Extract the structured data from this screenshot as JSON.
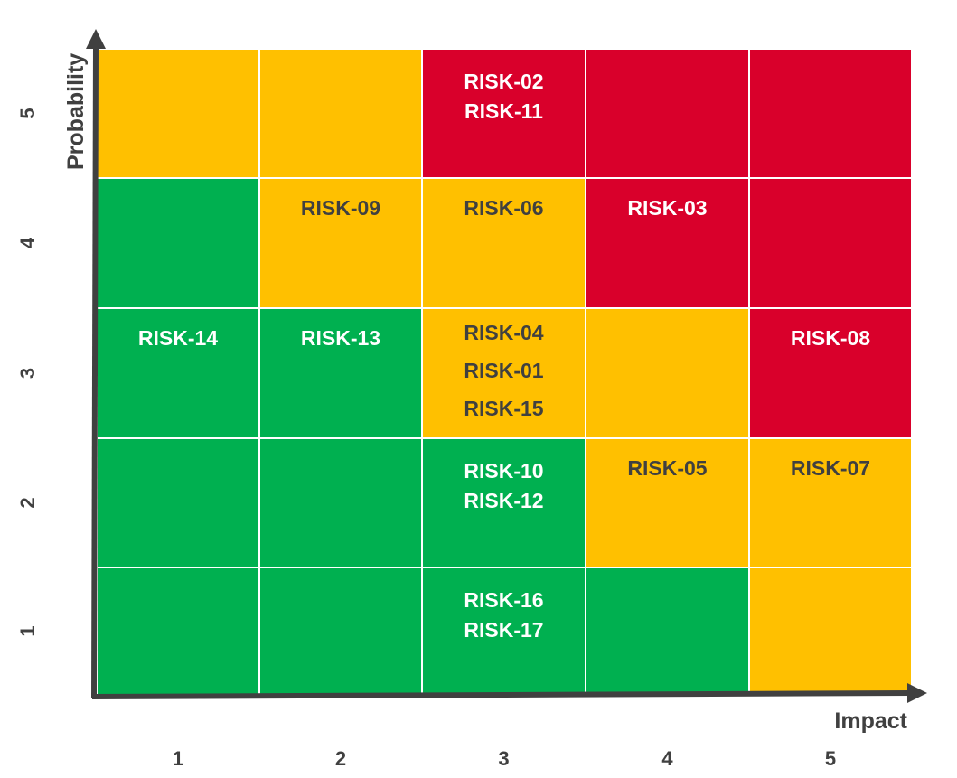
{
  "chart_data": {
    "type": "heatmap",
    "xlabel": "Impact",
    "ylabel": "Probability",
    "x_ticks": [
      "1",
      "2",
      "3",
      "4",
      "5"
    ],
    "y_ticks": [
      "1",
      "2",
      "3",
      "4",
      "5"
    ],
    "colors": {
      "green": "#00b050",
      "amber": "#ffc000",
      "red": "#d9002b",
      "dark_text": "#404040",
      "light_text": "#ffffff",
      "axis": "#404040"
    },
    "zone_grid_top_to_bottom": [
      [
        "amber",
        "amber",
        "red",
        "red",
        "red"
      ],
      [
        "green",
        "amber",
        "amber",
        "red",
        "red"
      ],
      [
        "green",
        "green",
        "amber",
        "amber",
        "red"
      ],
      [
        "green",
        "green",
        "green",
        "amber",
        "amber"
      ],
      [
        "green",
        "green",
        "green",
        "green",
        "amber"
      ]
    ],
    "risks": [
      {
        "id": "RISK-02",
        "impact": 3,
        "probability": 5
      },
      {
        "id": "RISK-11",
        "impact": 3,
        "probability": 5
      },
      {
        "id": "RISK-09",
        "impact": 2,
        "probability": 4
      },
      {
        "id": "RISK-06",
        "impact": 3,
        "probability": 4
      },
      {
        "id": "RISK-03",
        "impact": 4,
        "probability": 4
      },
      {
        "id": "RISK-14",
        "impact": 1,
        "probability": 3
      },
      {
        "id": "RISK-13",
        "impact": 2,
        "probability": 3
      },
      {
        "id": "RISK-04",
        "impact": 3,
        "probability": 3
      },
      {
        "id": "RISK-01",
        "impact": 3,
        "probability": 3
      },
      {
        "id": "RISK-15",
        "impact": 3,
        "probability": 3
      },
      {
        "id": "RISK-08",
        "impact": 5,
        "probability": 3
      },
      {
        "id": "RISK-10",
        "impact": 3,
        "probability": 2
      },
      {
        "id": "RISK-12",
        "impact": 3,
        "probability": 2
      },
      {
        "id": "RISK-05",
        "impact": 4,
        "probability": 2
      },
      {
        "id": "RISK-07",
        "impact": 5,
        "probability": 2
      },
      {
        "id": "RISK-16",
        "impact": 3,
        "probability": 1
      },
      {
        "id": "RISK-17",
        "impact": 3,
        "probability": 1
      }
    ]
  }
}
